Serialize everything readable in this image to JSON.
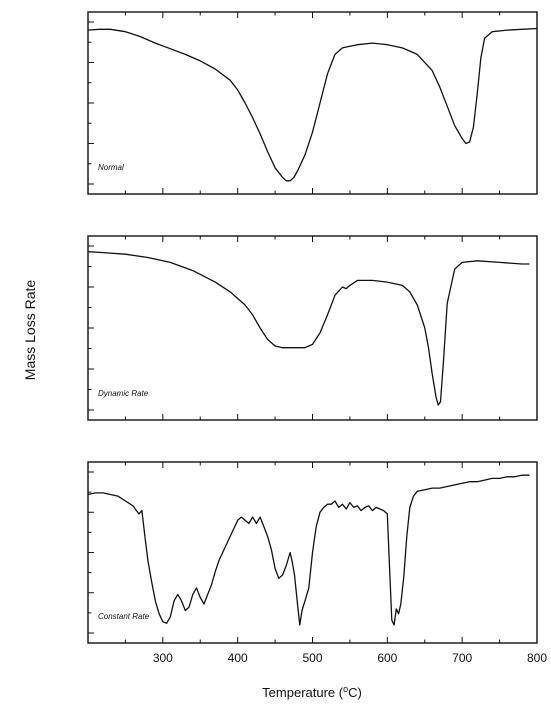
{
  "chart_data": {
    "type": "line",
    "ylabel": "Mass Loss Rate",
    "xlabel": "Temperature (",
    "xlabel_unit_sup": "o",
    "xlabel_unit_after": "C)",
    "xlim": [
      200,
      800
    ],
    "x_ticks": [
      300,
      400,
      500,
      600,
      700,
      800
    ],
    "panels": [
      {
        "label": "Normal",
        "series": [
          {
            "x": [
              200,
              215,
              230,
              250,
              270,
              290,
              310,
              330,
              350,
              370,
              390,
              400,
              410,
              420,
              430,
              440,
              450,
              460,
              465,
              470,
              475,
              480,
              490,
              500,
              510,
              520,
              530,
              540,
              550,
              560,
              580,
              600,
              620,
              640,
              660,
              670,
              680,
              690,
              700,
              705,
              710,
              715,
              720,
              725,
              730,
              740,
              760,
              780,
              800
            ],
            "y": [
              0.95,
              0.955,
              0.955,
              0.94,
              0.91,
              0.87,
              0.835,
              0.8,
              0.76,
              0.71,
              0.64,
              0.58,
              0.5,
              0.41,
              0.31,
              0.2,
              0.1,
              0.04,
              0.02,
              0.02,
              0.04,
              0.08,
              0.18,
              0.32,
              0.5,
              0.68,
              0.8,
              0.84,
              0.85,
              0.86,
              0.87,
              0.86,
              0.84,
              0.8,
              0.7,
              0.6,
              0.48,
              0.36,
              0.28,
              0.25,
              0.26,
              0.35,
              0.55,
              0.78,
              0.9,
              0.94,
              0.95,
              0.955,
              0.96
            ]
          }
        ]
      },
      {
        "label": "Dynamic Rate",
        "series": [
          {
            "x": [
              200,
              220,
              250,
              280,
              310,
              340,
              370,
              390,
              410,
              420,
              430,
              440,
              450,
              460,
              470,
              480,
              490,
              500,
              510,
              520,
              530,
              540,
              545,
              550,
              560,
              580,
              600,
              620,
              630,
              640,
              650,
              655,
              660,
              665,
              668,
              671,
              675,
              680,
              690,
              700,
              720,
              750,
              780,
              790
            ],
            "y": [
              0.965,
              0.96,
              0.95,
              0.93,
              0.9,
              0.85,
              0.78,
              0.72,
              0.64,
              0.58,
              0.5,
              0.43,
              0.39,
              0.38,
              0.38,
              0.38,
              0.38,
              0.4,
              0.47,
              0.58,
              0.7,
              0.75,
              0.74,
              0.76,
              0.79,
              0.79,
              0.78,
              0.76,
              0.72,
              0.64,
              0.5,
              0.38,
              0.22,
              0.08,
              0.03,
              0.05,
              0.3,
              0.65,
              0.86,
              0.9,
              0.91,
              0.9,
              0.89,
              0.89
            ]
          }
        ]
      },
      {
        "label": "Constant Rate",
        "series": [
          {
            "x": [
              200,
              210,
              220,
              230,
              240,
              250,
              260,
              268,
              272,
              276,
              280,
              285,
              290,
              295,
              300,
              305,
              310,
              315,
              320,
              325,
              330,
              335,
              340,
              345,
              350,
              355,
              360,
              365,
              370,
              375,
              380,
              385,
              390,
              395,
              400,
              405,
              410,
              415,
              420,
              425,
              430,
              435,
              440,
              445,
              450,
              455,
              460,
              465,
              470,
              473,
              476,
              480,
              483,
              486,
              490,
              495,
              500,
              505,
              510,
              515,
              520,
              525,
              530,
              535,
              540,
              545,
              550,
              555,
              560,
              565,
              570,
              575,
              580,
              585,
              590,
              595,
              600,
              603,
              606,
              609,
              612,
              615,
              618,
              622,
              626,
              630,
              635,
              640,
              650,
              660,
              670,
              680,
              690,
              700,
              710,
              720,
              730,
              740,
              750,
              760,
              770,
              780,
              790
            ],
            "y": [
              0.86,
              0.87,
              0.87,
              0.86,
              0.85,
              0.82,
              0.79,
              0.74,
              0.76,
              0.6,
              0.45,
              0.32,
              0.2,
              0.12,
              0.07,
              0.06,
              0.1,
              0.2,
              0.24,
              0.2,
              0.14,
              0.16,
              0.24,
              0.28,
              0.22,
              0.18,
              0.24,
              0.3,
              0.38,
              0.45,
              0.5,
              0.55,
              0.6,
              0.65,
              0.7,
              0.72,
              0.7,
              0.68,
              0.72,
              0.68,
              0.72,
              0.66,
              0.6,
              0.52,
              0.4,
              0.34,
              0.36,
              0.42,
              0.5,
              0.44,
              0.36,
              0.18,
              0.05,
              0.14,
              0.2,
              0.28,
              0.5,
              0.66,
              0.75,
              0.78,
              0.8,
              0.8,
              0.82,
              0.78,
              0.8,
              0.77,
              0.81,
              0.78,
              0.79,
              0.76,
              0.78,
              0.79,
              0.76,
              0.78,
              0.77,
              0.76,
              0.74,
              0.4,
              0.08,
              0.05,
              0.15,
              0.12,
              0.18,
              0.35,
              0.6,
              0.78,
              0.85,
              0.88,
              0.89,
              0.9,
              0.9,
              0.91,
              0.92,
              0.93,
              0.94,
              0.94,
              0.95,
              0.96,
              0.96,
              0.97,
              0.97,
              0.98,
              0.98
            ]
          }
        ]
      }
    ]
  }
}
